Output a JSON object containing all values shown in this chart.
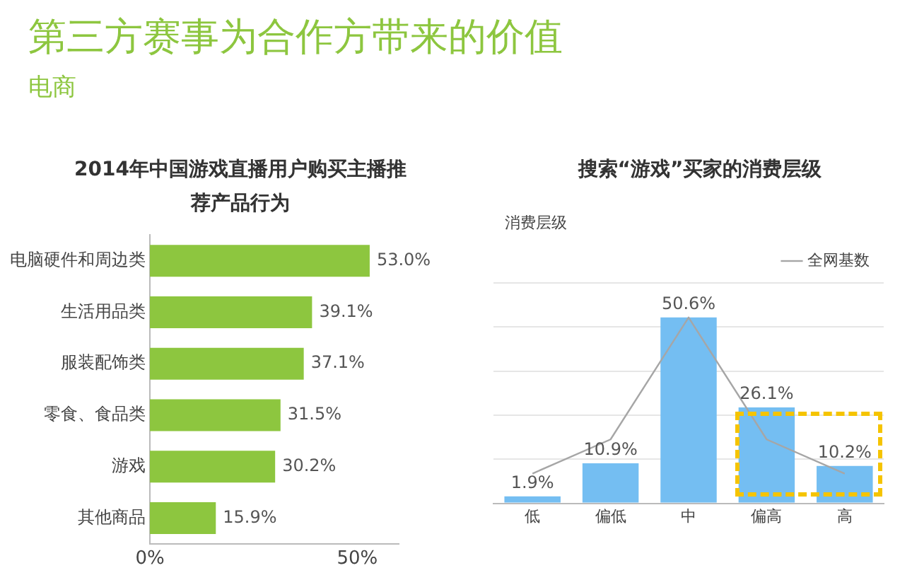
{
  "chart_data": [
    {
      "type": "bar",
      "orientation": "horizontal",
      "title": "2014年中国游戏直播用户购买主播推荐产品行为",
      "annotations": [
        "第三方赛事为合作方带来的价值",
        "电商"
      ],
      "categories": [
        "电脑硬件和周边类",
        "生活用品类",
        "服装配饰类",
        "零食、食品类",
        "游戏",
        "其他商品"
      ],
      "values": [
        53.0,
        39.1,
        37.1,
        31.5,
        30.2,
        15.9
      ],
      "value_labels": [
        "53.0%",
        "39.1%",
        "37.1%",
        "31.5%",
        "30.2%",
        "15.9%"
      ],
      "color": "#8dc63f",
      "xlim": [
        0,
        60
      ],
      "xticks": [
        {
          "value": 0,
          "label": "0%"
        },
        {
          "value": 50,
          "label": "50%"
        }
      ],
      "grid": false
    },
    {
      "type": "bar",
      "title": "搜索“游戏”买家的消费层级",
      "ylabel": "消费层级",
      "categories": [
        "低",
        "偏低",
        "中",
        "偏高",
        "高"
      ],
      "series": [
        {
          "color": "#74bef2",
          "values": [
            1.9,
            10.9,
            50.6,
            26.1,
            10.2
          ],
          "value_labels": [
            "1.9%",
            "10.9%",
            "50.6%",
            "26.1%",
            "10.2%"
          ]
        },
        {
          "name": "全网基数",
          "type": "line",
          "color": "#a6a6a6",
          "values": [
            8.1,
            17.4,
            50.6,
            17.4,
            8.1
          ]
        }
      ],
      "ylim": [
        0,
        60
      ],
      "yticks": [
        {
          "value": 0,
          "label": null
        },
        {
          "value": 12,
          "label": null
        },
        {
          "value": 24,
          "label": null
        },
        {
          "value": 36,
          "label": null
        },
        {
          "value": 48,
          "label": null
        },
        {
          "value": 60,
          "label": null
        }
      ],
      "grid": "y",
      "legend": "top right",
      "tick_labels": "x",
      "marker": "none"
    }
  ]
}
